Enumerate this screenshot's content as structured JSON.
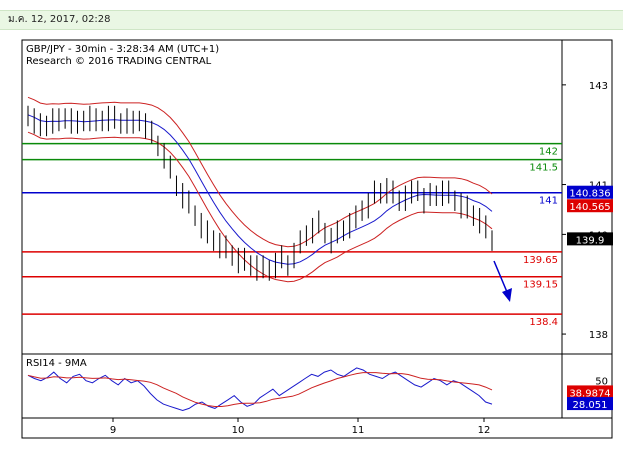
{
  "header_date": "ม.ค. 12, 2017, 02:28",
  "chart_data": {
    "type": "line",
    "title": "GBP/JPY - 30min - 3:28:34 AM (UTC+1)",
    "subtitle": "Research © 2016 TRADING CENTRAL",
    "x_ticks": [
      "9",
      "10",
      "11",
      "12"
    ],
    "y_ticks": [
      "143",
      "141",
      "140",
      "138"
    ],
    "ylim": [
      137.6,
      143.9
    ],
    "price_series": [
      142.4,
      142.3,
      142.15,
      142.2,
      142.3,
      142.25,
      142.35,
      142.3,
      142.2,
      142.3,
      142.35,
      142.25,
      142.3,
      142.35,
      142.3,
      142.25,
      142.3,
      142.2,
      142.3,
      142.2,
      142.0,
      141.8,
      141.6,
      141.3,
      141.0,
      140.8,
      140.6,
      140.4,
      140.2,
      140.0,
      139.9,
      139.8,
      139.7,
      139.6,
      139.5,
      139.45,
      139.4,
      139.35,
      139.3,
      139.3,
      139.4,
      139.5,
      139.4,
      139.6,
      139.8,
      140.0,
      140.1,
      140.2,
      140.05,
      139.9,
      140.0,
      140.1,
      140.2,
      140.3,
      140.5,
      140.6,
      140.8,
      140.85,
      140.9,
      140.8,
      140.7,
      140.75,
      140.8,
      140.9,
      140.7,
      140.75,
      140.8,
      140.85,
      140.8,
      140.7,
      140.6,
      140.5,
      140.4,
      140.3,
      140.1,
      139.9
    ],
    "price_lines": [
      {
        "label": "142",
        "value": 141.82,
        "color": "#0a8a0a"
      },
      {
        "label": "141.5",
        "value": 141.5,
        "color": "#0a8a0a"
      },
      {
        "label": "141",
        "value": 140.836,
        "color": "#0000cc"
      },
      {
        "label": "139.65",
        "value": 139.65,
        "color": "#dd0000"
      },
      {
        "label": "139.15",
        "value": 139.15,
        "color": "#dd0000"
      },
      {
        "label": "138.4",
        "value": 138.4,
        "color": "#dd0000"
      }
    ],
    "price_tags": [
      {
        "label": "140.836",
        "value": 140.836,
        "bg": "#0000cc",
        "fg": "#ffffff"
      },
      {
        "label": "140.565",
        "value": 140.565,
        "bg": "#dd0000",
        "fg": "#ffffff"
      },
      {
        "label": "139.9",
        "value": 139.9,
        "bg": "#000000",
        "fg": "#ffffff"
      }
    ],
    "indicator": {
      "title": "RSI14 - 9MA",
      "y_ticks": [
        "50"
      ],
      "ylim": [
        15,
        75
      ],
      "tags": [
        {
          "label": "38.9874",
          "value": 38.9874,
          "bg": "#dd0000",
          "fg": "#ffffff"
        },
        {
          "label": "28.051",
          "value": 28.051,
          "bg": "#0000cc",
          "fg": "#ffffff"
        }
      ],
      "rsi_series": [
        55,
        52,
        50,
        53,
        58,
        52,
        48,
        54,
        56,
        50,
        48,
        52,
        55,
        50,
        46,
        52,
        48,
        50,
        45,
        38,
        32,
        28,
        26,
        24,
        22,
        24,
        28,
        30,
        26,
        24,
        28,
        32,
        36,
        30,
        26,
        28,
        34,
        38,
        42,
        36,
        40,
        44,
        48,
        52,
        56,
        54,
        58,
        60,
        56,
        54,
        58,
        62,
        60,
        56,
        54,
        52,
        56,
        58,
        54,
        50,
        46,
        44,
        48,
        52,
        50,
        46,
        50,
        48,
        44,
        40,
        36,
        30,
        28
      ]
    }
  }
}
